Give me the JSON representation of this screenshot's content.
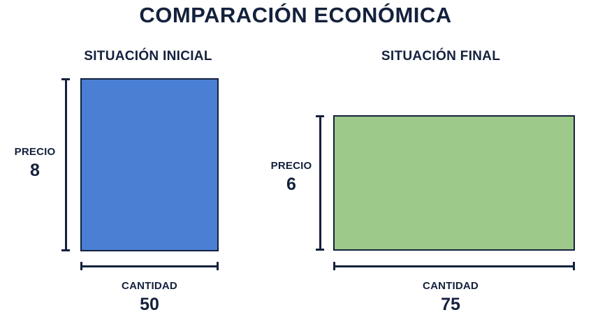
{
  "title": "COMPARACIÓN ECONÓMICA",
  "colors": {
    "ink": "#14213d",
    "initial_fill": "#4a7fd4",
    "final_fill": "#9dc98a"
  },
  "panels": [
    {
      "title": "SITUACIÓN INICIAL",
      "price_label": "PRECIO",
      "price": "8",
      "quantity_label": "CANTIDAD",
      "quantity": "50"
    },
    {
      "title": "SITUACIÓN FINAL",
      "price_label": "PRECIO",
      "price": "6",
      "quantity_label": "CANTIDAD",
      "quantity": "75"
    }
  ]
}
